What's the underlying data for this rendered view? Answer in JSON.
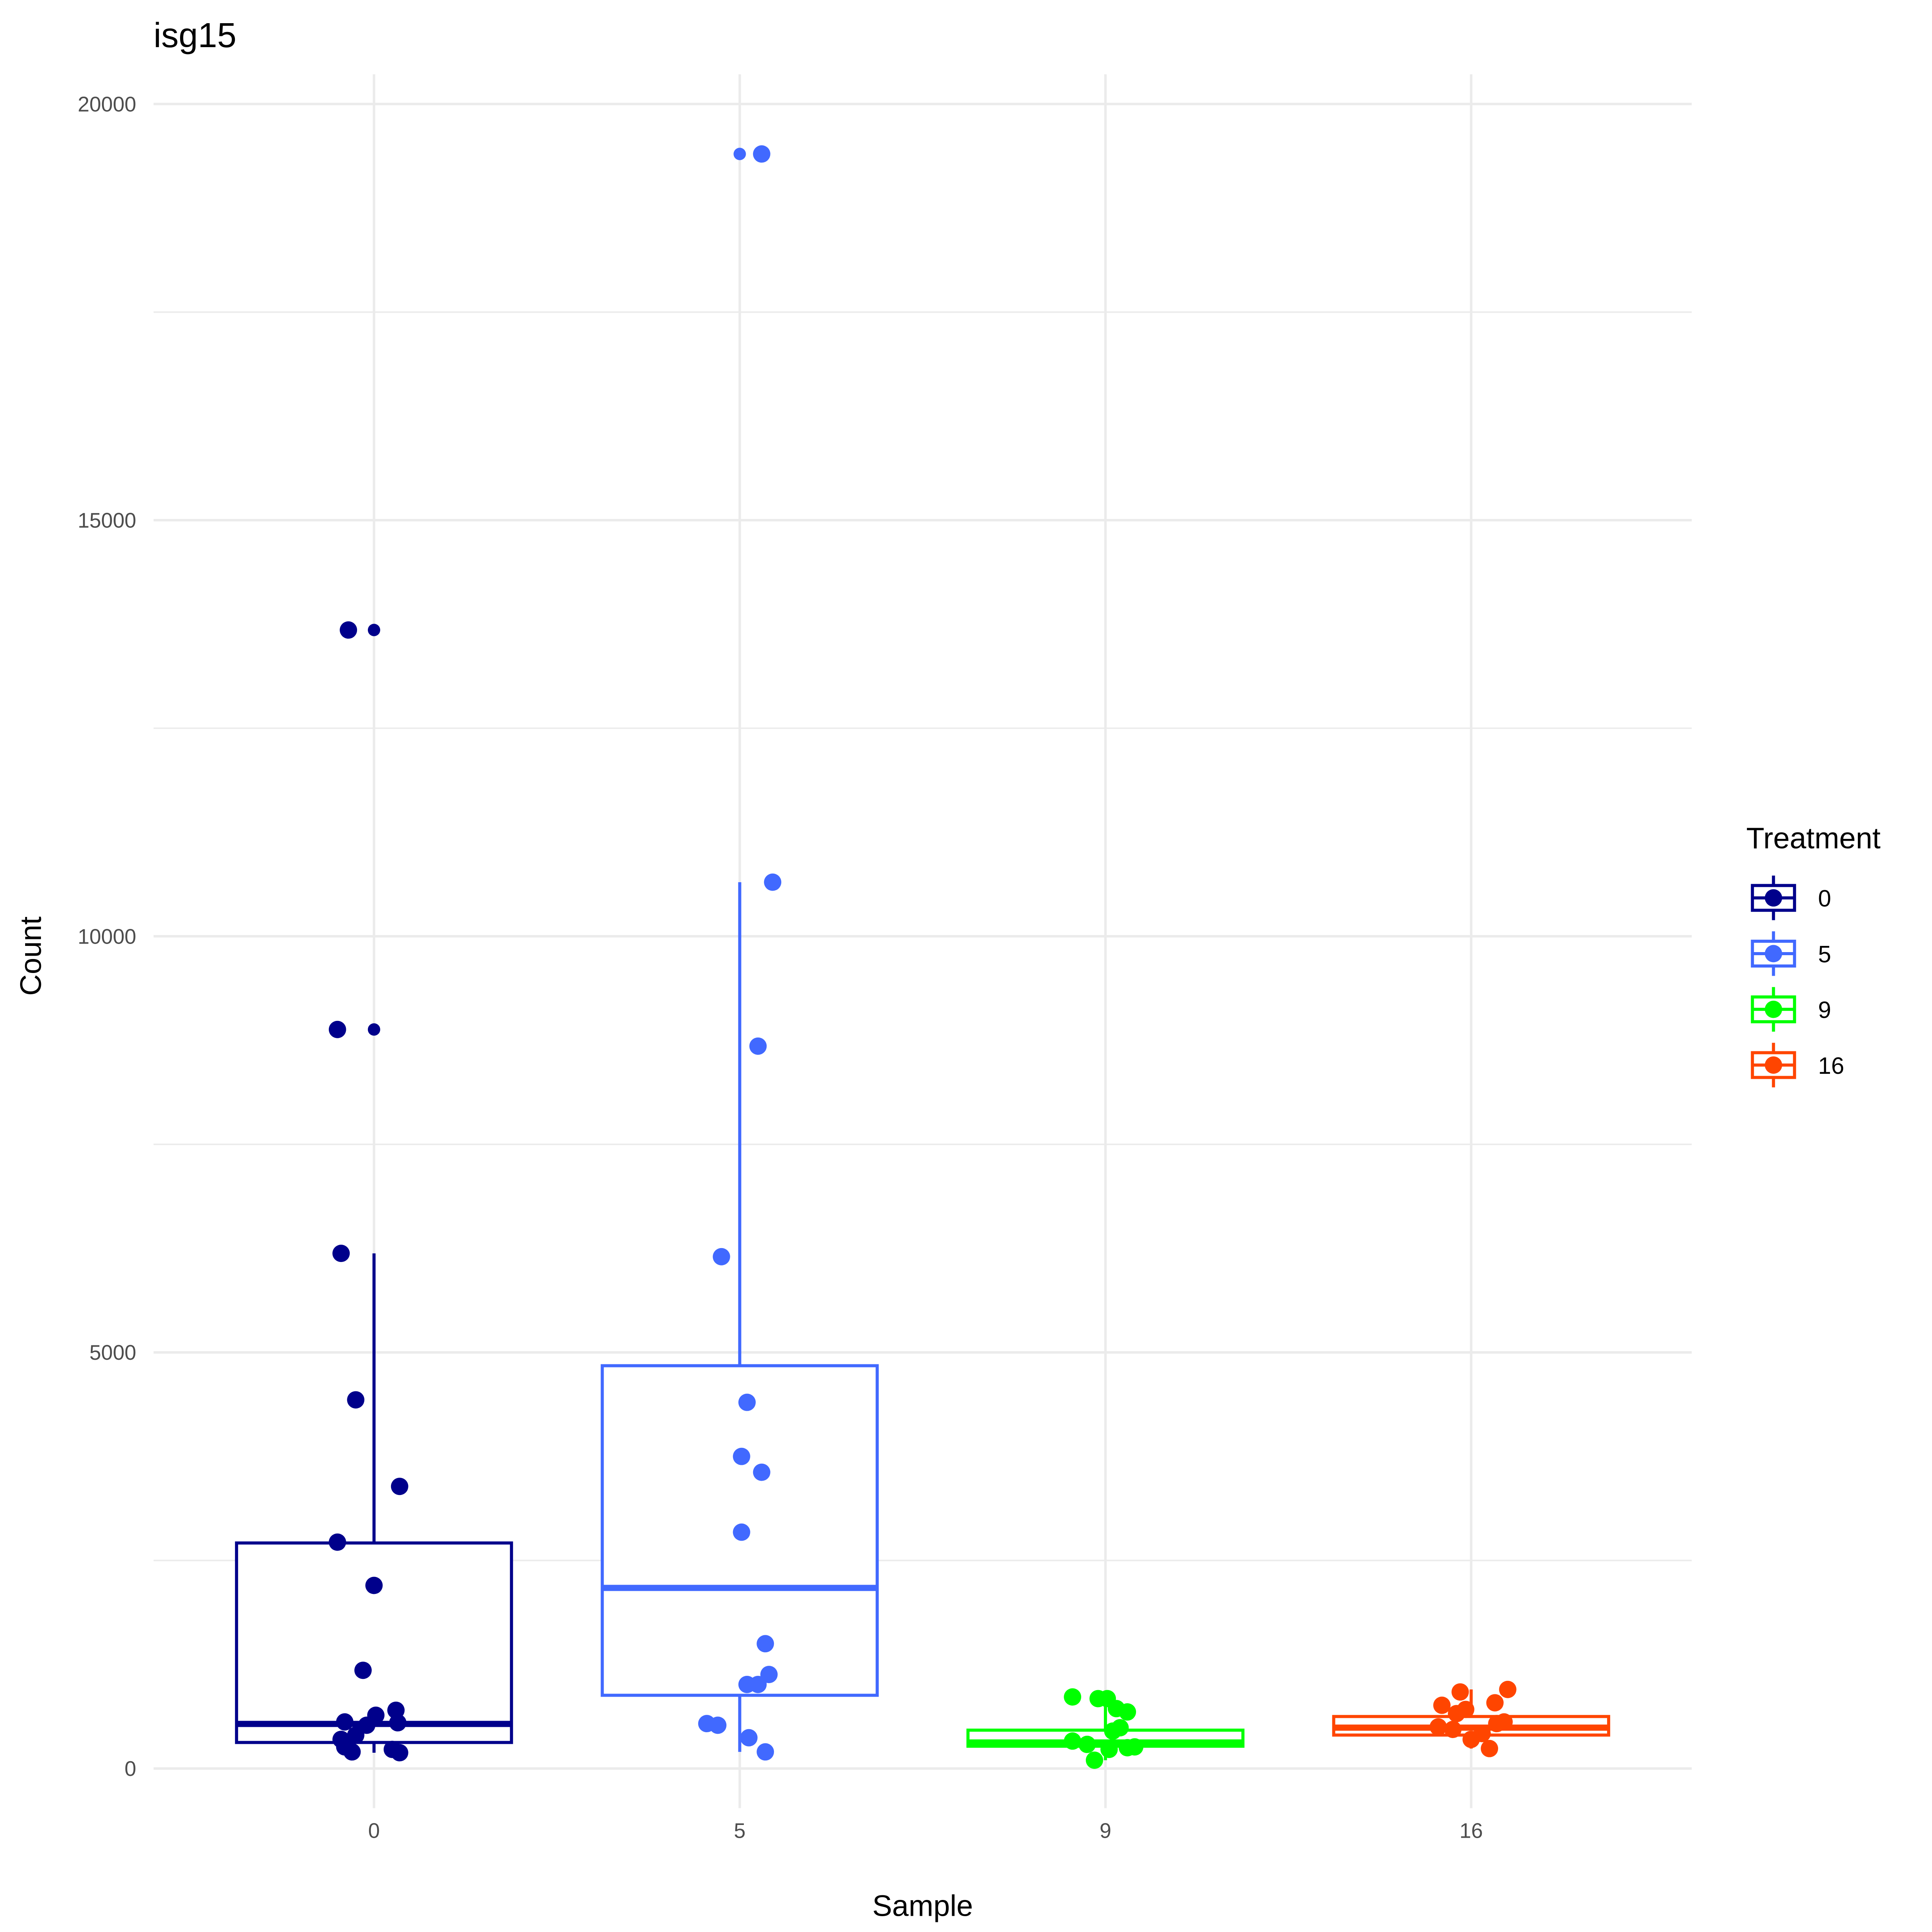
{
  "chart_data": {
    "type": "box",
    "title": "isg15",
    "xlabel": "Sample",
    "ylabel": "Count",
    "ylim": [
      -900,
      20700
    ],
    "yticks": [
      0,
      5000,
      10000,
      15000,
      20000
    ],
    "ytick_labels": [
      "0",
      "5000",
      "10000",
      "15000",
      "20000"
    ],
    "categories": [
      "0",
      "5",
      "9",
      "16"
    ],
    "legend": {
      "title": "Treatment",
      "position": "right",
      "entries": [
        "0",
        "5",
        "9",
        "16"
      ]
    },
    "series": [
      {
        "name": "0",
        "color": "#00008B",
        "box": {
          "q1": 313,
          "median": 536,
          "q3": 2710,
          "whisker_low": 190,
          "whisker_high": 6190
        },
        "outliers": [
          13680,
          8880
        ],
        "points": [
          [
            13680,
            -0.07
          ],
          [
            8880,
            -0.1
          ],
          [
            6190,
            -0.09
          ],
          [
            4430,
            -0.05
          ],
          [
            3390,
            0.07
          ],
          [
            2720,
            -0.1
          ],
          [
            2200,
            0
          ],
          [
            1180,
            -0.03
          ],
          [
            700,
            0.06
          ],
          [
            640,
            0.005
          ],
          [
            560,
            -0.08
          ],
          [
            550,
            0.065
          ],
          [
            520,
            -0.02
          ],
          [
            400,
            -0.05
          ],
          [
            350,
            -0.09
          ],
          [
            260,
            -0.08
          ],
          [
            230,
            0.05
          ],
          [
            200,
            -0.06
          ],
          [
            190,
            0.07
          ]
        ]
      },
      {
        "name": "5",
        "color": "#4169FF",
        "box": {
          "q1": 880,
          "median": 2170,
          "q3": 4840,
          "whisker_low": 200,
          "whisker_high": 10650
        },
        "outliers": [
          19400
        ],
        "points": [
          [
            19400,
            0.06
          ],
          [
            10650,
            0.09
          ],
          [
            8680,
            0.05
          ],
          [
            6150,
            -0.05
          ],
          [
            4400,
            0.02
          ],
          [
            3750,
            0.005
          ],
          [
            3560,
            0.06
          ],
          [
            2840,
            0.005
          ],
          [
            1500,
            0.07
          ],
          [
            1130,
            0.08
          ],
          [
            1010,
            0.02
          ],
          [
            1010,
            0.05
          ],
          [
            540,
            -0.09
          ],
          [
            520,
            -0.06
          ],
          [
            370,
            0.025
          ],
          [
            200,
            0.07
          ]
        ]
      },
      {
        "name": "9",
        "color": "#00FF00",
        "box": {
          "q1": 268,
          "median": 313,
          "q3": 461,
          "whisker_low": 100,
          "whisker_high": 860
        },
        "outliers": [],
        "points": [
          [
            860,
            -0.09
          ],
          [
            840,
            -0.02
          ],
          [
            840,
            0.005
          ],
          [
            720,
            0.03
          ],
          [
            680,
            0.06
          ],
          [
            490,
            0.04
          ],
          [
            450,
            0.02
          ],
          [
            330,
            -0.09
          ],
          [
            290,
            -0.05
          ],
          [
            260,
            0.08
          ],
          [
            230,
            0.01
          ],
          [
            250,
            0.06
          ],
          [
            100,
            -0.03
          ]
        ]
      },
      {
        "name": "16",
        "color": "#FF4500",
        "box": {
          "q1": 402,
          "median": 491,
          "q3": 625,
          "whisker_low": 240,
          "whisker_high": 950
        },
        "outliers": [],
        "points": [
          [
            950,
            0.1
          ],
          [
            920,
            -0.03
          ],
          [
            790,
            0.065
          ],
          [
            760,
            -0.08
          ],
          [
            710,
            -0.015
          ],
          [
            660,
            -0.04
          ],
          [
            560,
            0.09
          ],
          [
            540,
            0.07
          ],
          [
            500,
            -0.09
          ],
          [
            470,
            -0.05
          ],
          [
            420,
            0.03
          ],
          [
            350,
            0
          ],
          [
            240,
            0.05
          ]
        ]
      }
    ]
  }
}
